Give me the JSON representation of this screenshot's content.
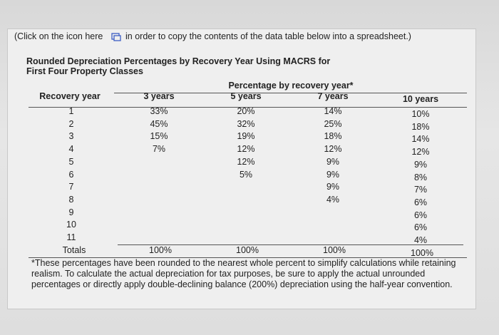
{
  "instruction_before": "(Click on the icon here",
  "instruction_after": "in order to copy the contents of the data table below into a spreadsheet.)",
  "title_lines": [
    "Rounded Depreciation Percentages by Recovery Year Using MACRS for",
    "First Four Property Classes"
  ],
  "table": {
    "group_header": "Percentage by recovery year*",
    "header": [
      "Recovery year",
      "3 years",
      "5 years",
      "7 years",
      "10 years"
    ],
    "rows": [
      [
        "1",
        "33%",
        "20%",
        "14%",
        "10%"
      ],
      [
        "2",
        "45%",
        "32%",
        "25%",
        "18%"
      ],
      [
        "3",
        "15%",
        "19%",
        "18%",
        "14%"
      ],
      [
        "4",
        "7%",
        "12%",
        "12%",
        "12%"
      ],
      [
        "5",
        null,
        "12%",
        "9%",
        "9%"
      ],
      [
        "6",
        null,
        "5%",
        "9%",
        "8%"
      ],
      [
        "7",
        null,
        null,
        "9%",
        "7%"
      ],
      [
        "8",
        null,
        null,
        "4%",
        "6%"
      ],
      [
        "9",
        null,
        null,
        null,
        "6%"
      ],
      [
        "10",
        null,
        null,
        null,
        "6%"
      ],
      [
        "11",
        null,
        null,
        null,
        "4%"
      ]
    ],
    "totals": [
      "Totals",
      "100%",
      "100%",
      "100%",
      "100%"
    ]
  },
  "footnote": "*These percentages have been rounded to the nearest whole percent to simplify calculations while retaining realism. To calculate the actual depreciation for tax purposes, be sure to apply the actual unrounded percentages or directly apply double-declining balance (200%) depreciation using the half-year convention."
}
